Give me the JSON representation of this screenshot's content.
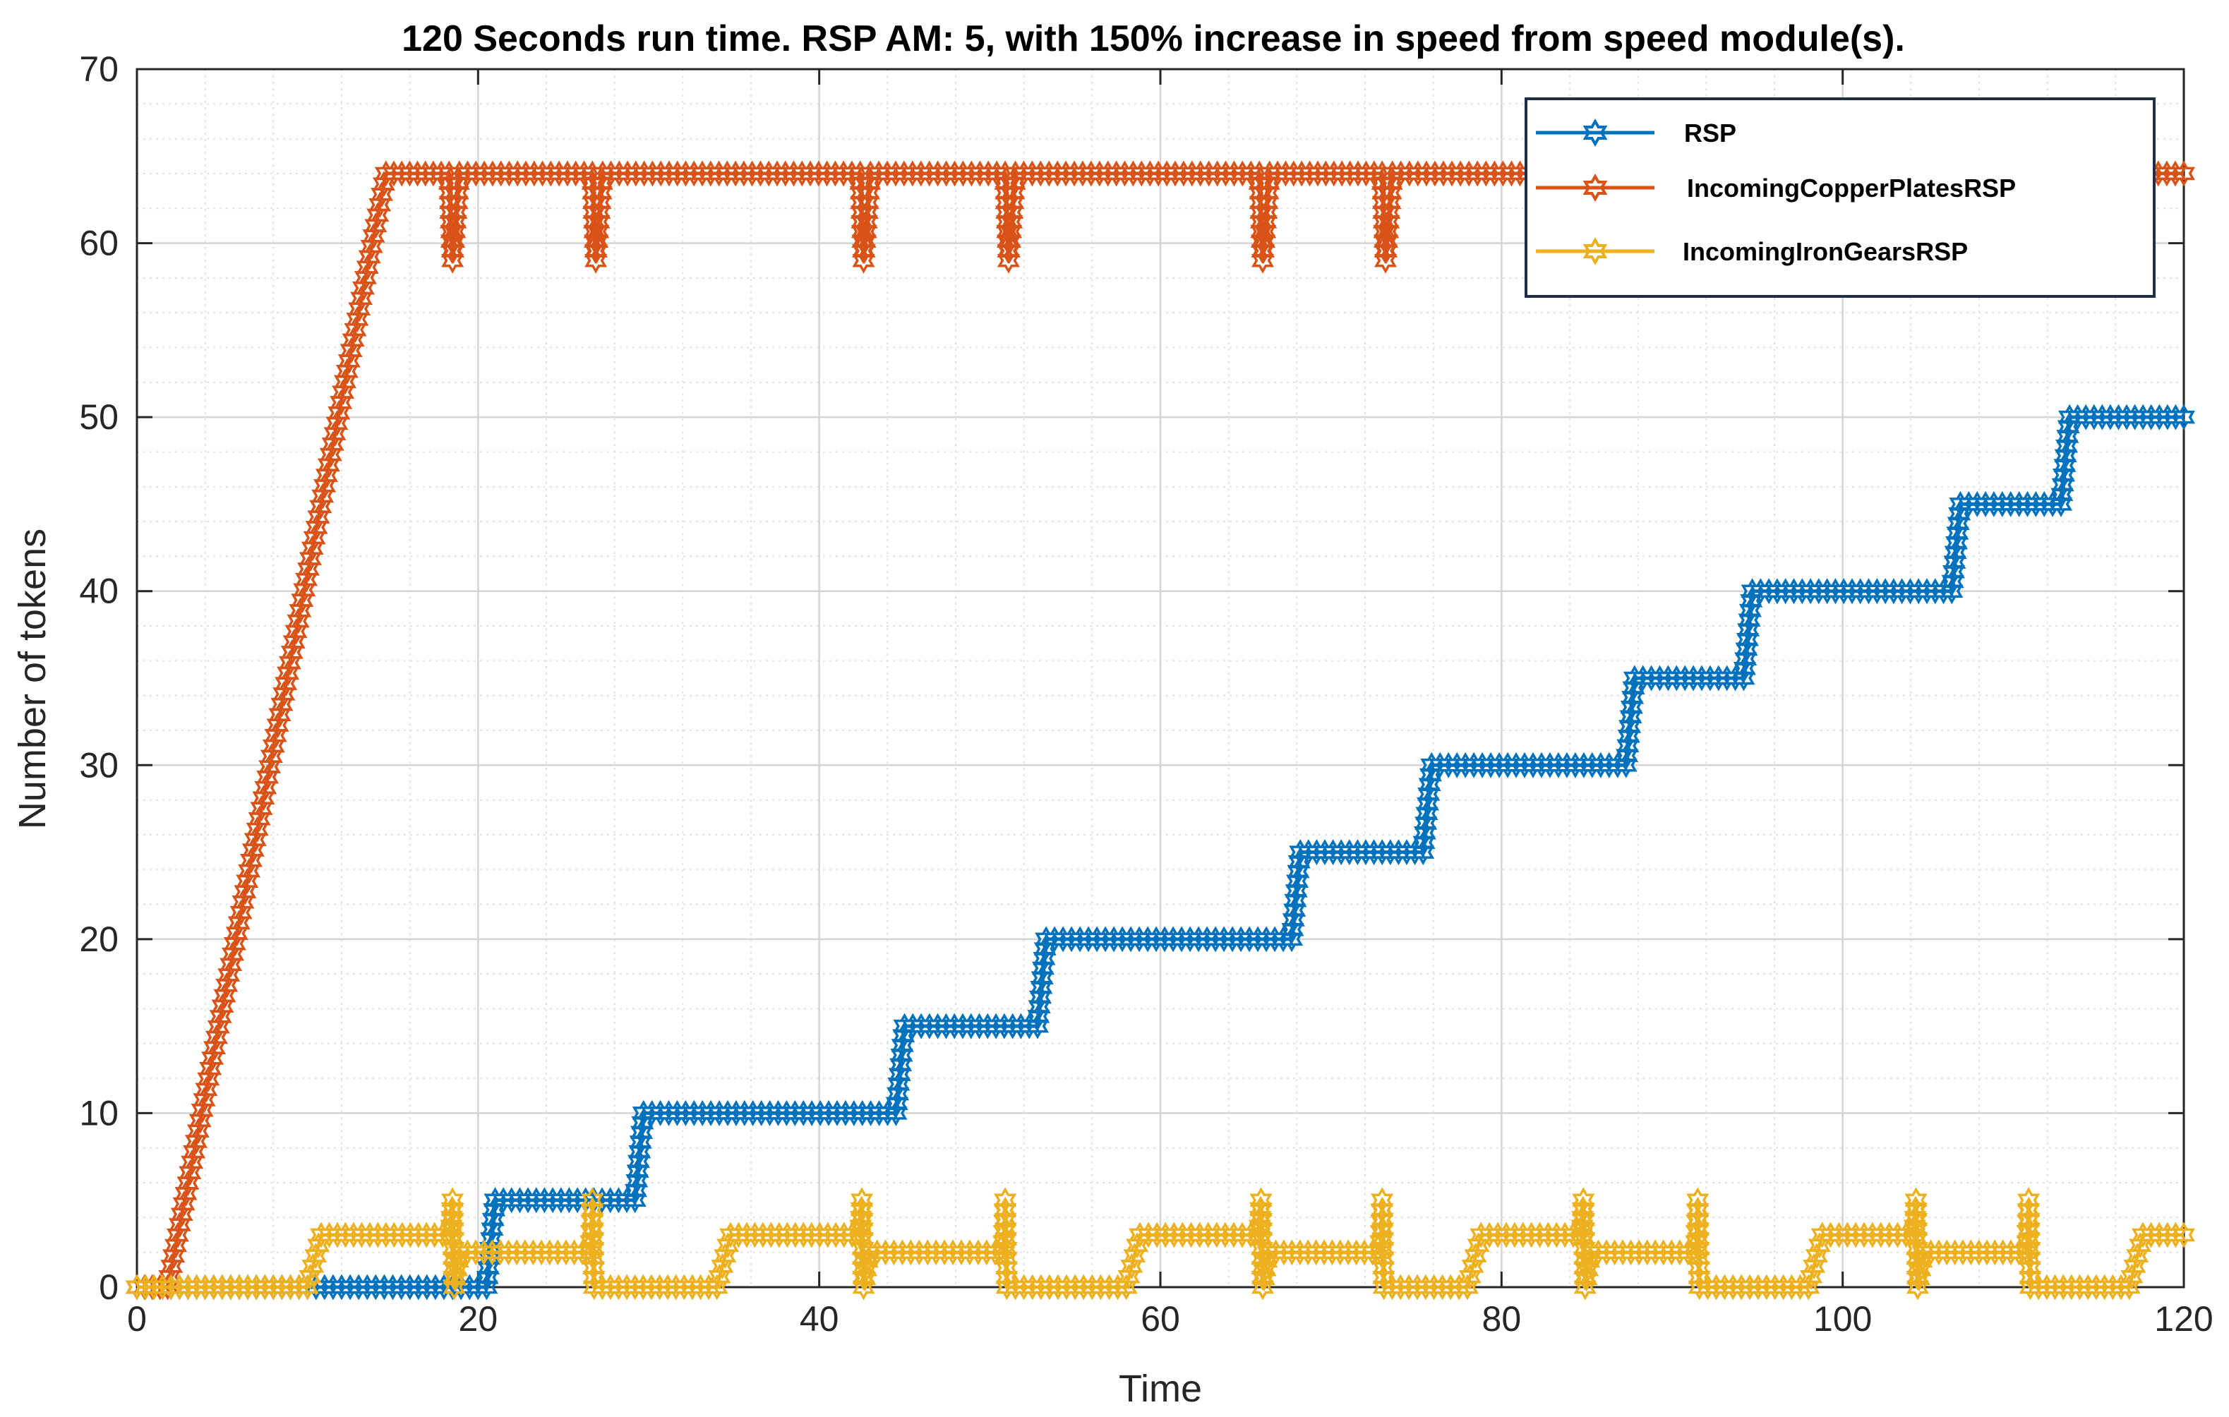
{
  "chart_data": {
    "type": "line",
    "title": "120 Seconds run time. RSP AM: 5, with 150% increase in speed from speed module(s).",
    "xlabel": "Time",
    "ylabel": "Number of tokens",
    "xlim": [
      0,
      120
    ],
    "ylim": [
      0,
      70
    ],
    "xticks": [
      0,
      20,
      40,
      60,
      80,
      100,
      120
    ],
    "yticks": [
      0,
      10,
      20,
      30,
      40,
      50,
      60,
      70
    ],
    "grid": true,
    "minor_grid": true,
    "marker": "hexagram",
    "legend_position": "top-right",
    "series": [
      {
        "name": "RSP",
        "color": "#0072BD",
        "points": [
          [
            0,
            0
          ],
          [
            10.5,
            0
          ],
          [
            20.5,
            0
          ],
          [
            21,
            5
          ],
          [
            29.2,
            5
          ],
          [
            29.7,
            10
          ],
          [
            44.5,
            10
          ],
          [
            45,
            15
          ],
          [
            52.8,
            15
          ],
          [
            53.3,
            20
          ],
          [
            67.7,
            20
          ],
          [
            68.2,
            25
          ],
          [
            75.4,
            25
          ],
          [
            75.9,
            30
          ],
          [
            87.3,
            30
          ],
          [
            87.8,
            35
          ],
          [
            94.2,
            35
          ],
          [
            94.7,
            40
          ],
          [
            106.4,
            40
          ],
          [
            106.9,
            45
          ],
          [
            112.8,
            45
          ],
          [
            113.3,
            50
          ],
          [
            120,
            50
          ]
        ]
      },
      {
        "name": "IncomingCopperPlatesRSP",
        "color": "#D95319",
        "points": [
          [
            0,
            0
          ],
          [
            1.8,
            0
          ],
          [
            14.6,
            64
          ],
          [
            18.3,
            64
          ],
          [
            18.5,
            59
          ],
          [
            18.9,
            64
          ],
          [
            26.7,
            64
          ],
          [
            26.9,
            59
          ],
          [
            27.3,
            64
          ],
          [
            42.4,
            64
          ],
          [
            42.6,
            59
          ],
          [
            43.0,
            64
          ],
          [
            50.9,
            64
          ],
          [
            51.1,
            59
          ],
          [
            51.5,
            64
          ],
          [
            65.8,
            64
          ],
          [
            66.0,
            59
          ],
          [
            66.4,
            64
          ],
          [
            73.0,
            64
          ],
          [
            73.2,
            59
          ],
          [
            73.6,
            64
          ],
          [
            120,
            64
          ]
        ]
      },
      {
        "name": "IncomingIronGearsRSP",
        "color": "#EDB120",
        "points": [
          [
            0,
            0
          ],
          [
            10.0,
            0
          ],
          [
            10.8,
            3
          ],
          [
            18.4,
            3
          ],
          [
            18.5,
            5
          ],
          [
            18.6,
            0
          ],
          [
            18.9,
            2
          ],
          [
            26.6,
            2
          ],
          [
            26.7,
            5
          ],
          [
            26.8,
            0
          ],
          [
            34.0,
            0
          ],
          [
            34.8,
            3
          ],
          [
            42.4,
            3
          ],
          [
            42.5,
            5
          ],
          [
            42.6,
            0
          ],
          [
            42.9,
            2
          ],
          [
            50.8,
            2
          ],
          [
            50.9,
            5
          ],
          [
            51.0,
            0
          ],
          [
            58.0,
            0
          ],
          [
            58.8,
            3
          ],
          [
            65.8,
            3
          ],
          [
            65.9,
            5
          ],
          [
            66.0,
            0
          ],
          [
            66.3,
            2
          ],
          [
            72.9,
            2
          ],
          [
            73.0,
            5
          ],
          [
            73.1,
            0
          ],
          [
            78.0,
            0
          ],
          [
            78.8,
            3
          ],
          [
            84.7,
            3
          ],
          [
            84.8,
            5
          ],
          [
            84.9,
            0
          ],
          [
            85.2,
            2
          ],
          [
            91.4,
            2
          ],
          [
            91.5,
            5
          ],
          [
            91.6,
            0
          ],
          [
            98.0,
            0
          ],
          [
            98.8,
            3
          ],
          [
            104.2,
            3
          ],
          [
            104.3,
            5
          ],
          [
            104.4,
            0
          ],
          [
            104.7,
            2
          ],
          [
            110.8,
            2
          ],
          [
            110.9,
            5
          ],
          [
            111.0,
            0
          ],
          [
            116.8,
            0
          ],
          [
            117.6,
            3
          ],
          [
            120,
            3
          ]
        ]
      }
    ]
  }
}
